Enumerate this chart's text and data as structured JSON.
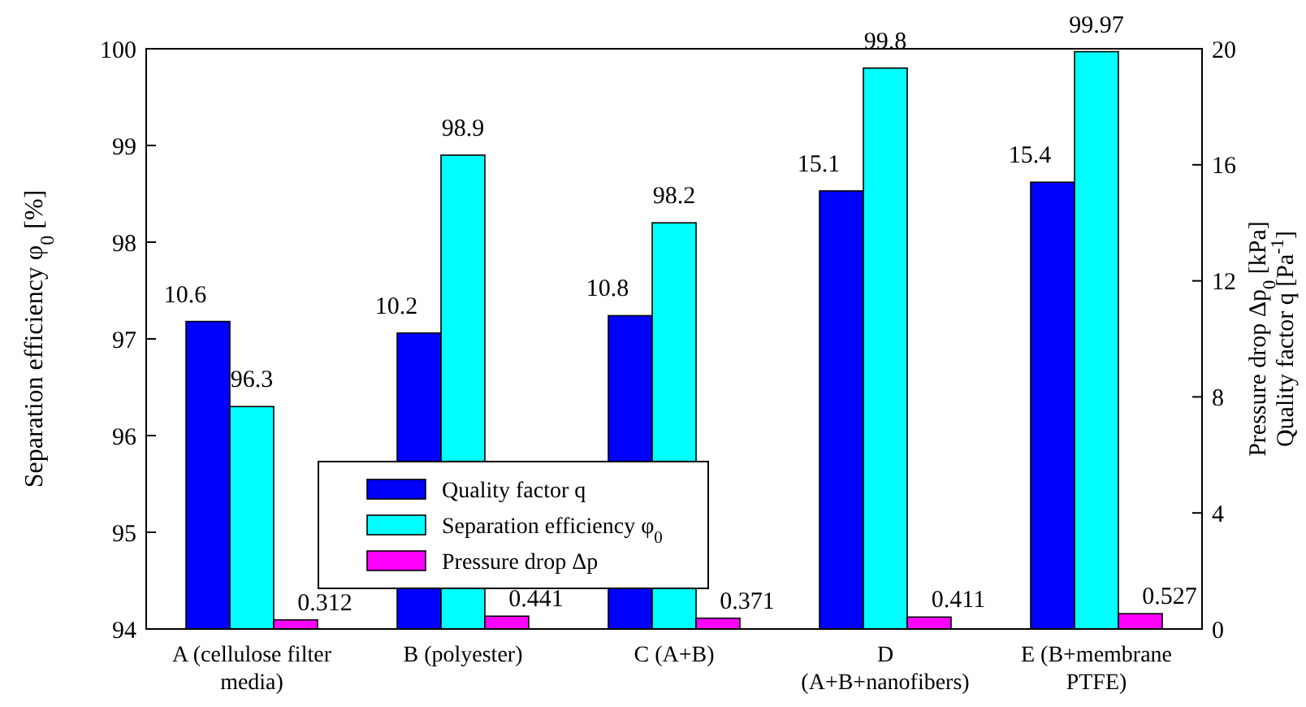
{
  "chart_data": {
    "type": "bar",
    "categories": [
      "A (cellulose filter\nmedia)",
      "B (polyester)",
      "C (A+B)",
      "D\n(A+B+nanofibers)",
      "E (B+membrane\nPTFE)"
    ],
    "series": [
      {
        "name": "Quality factor q",
        "color": "#0000ff",
        "axis": "y2",
        "values": [
          10.6,
          10.2,
          10.8,
          15.1,
          15.4
        ]
      },
      {
        "name": "Separation efficiency φ$_{0}$",
        "color": "#00ffff",
        "values": [
          96.3,
          98.9,
          98.2,
          99.8,
          99.97
        ]
      },
      {
        "name": "Pressure drop Δp",
        "color": "#ff00ff",
        "axis": "y2",
        "values": [
          0.312,
          0.441,
          0.371,
          0.411,
          0.527
        ]
      }
    ],
    "ylabel": "Separation efficiency φ$_{0}$ [%]",
    "y2label": "Pressure drop Δp$_{0}$ [kPa]\nQuality factor q [Pa$^{-1}$]",
    "ylim": [
      94,
      100
    ],
    "yticks": [
      94,
      95,
      96,
      97,
      98,
      99,
      100
    ],
    "y2lim": [
      0,
      20
    ],
    "y2ticks": [
      0,
      4,
      8,
      12,
      16,
      20
    ],
    "data_labels": true,
    "legend": "center"
  }
}
